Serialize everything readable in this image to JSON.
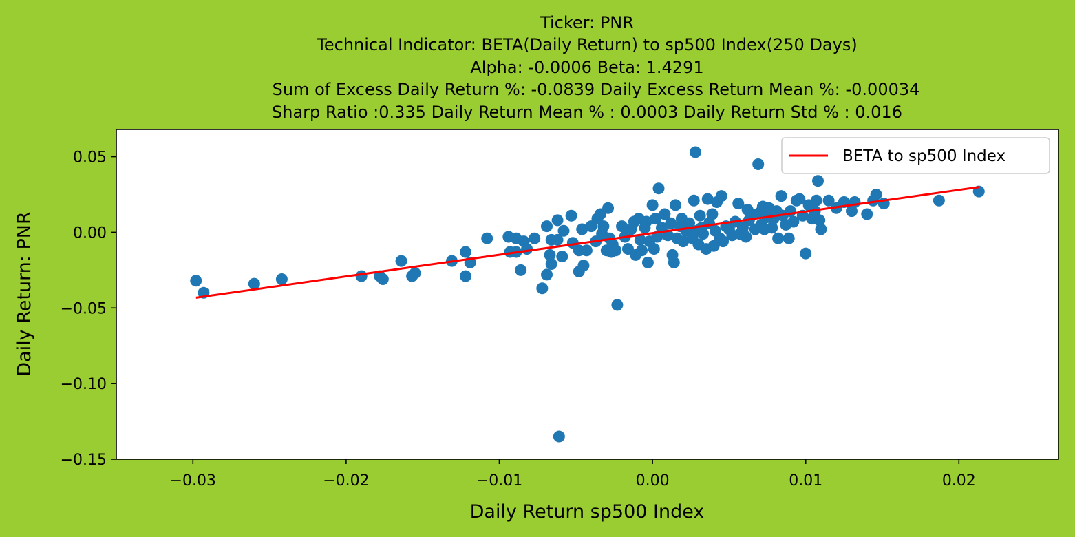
{
  "chart_data": {
    "type": "scatter",
    "title_lines": [
      "Ticker: PNR",
      "Technical Indicator: BETA(Daily Return) to sp500 Index(250 Days)",
      "Alpha: -0.0006   Beta: 1.4291",
      "Sum of Excess Daily Return %: -0.0839   Daily Excess Return Mean %: -0.00034",
      "Sharp Ratio :0.335     Daily Return Mean % : 0.0003     Daily Return Std % : 0.016"
    ],
    "xlabel": "Daily Return sp500 Index",
    "ylabel": "Daily Return: PNR",
    "xlim": [
      -0.035,
      0.0265
    ],
    "ylim": [
      -0.15,
      0.068
    ],
    "x_ticks": [
      -0.03,
      -0.02,
      -0.01,
      0.0,
      0.01,
      0.02
    ],
    "x_tick_labels": [
      "−0.03",
      "−0.02",
      "−0.01",
      "0.00",
      "0.01",
      "0.02"
    ],
    "y_ticks": [
      0.05,
      0.0,
      -0.05,
      -0.1,
      -0.15
    ],
    "y_tick_labels": [
      "0.05",
      "0.00",
      "−0.05",
      "−0.10",
      "−0.15"
    ],
    "grid": false,
    "background": "#9acd32",
    "plot_background": "#ffffff",
    "point_color": "#1f77b4",
    "line_color": "#ff0000",
    "legend": {
      "position": "top-right",
      "entries": [
        "BETA to sp500 Index"
      ]
    },
    "regression": {
      "name": "BETA to sp500 Index",
      "x": [
        -0.0298,
        0.0213
      ],
      "y": [
        -0.0432,
        0.0299
      ]
    },
    "points": [
      [
        -0.0298,
        -0.032
      ],
      [
        -0.0293,
        -0.04
      ],
      [
        -0.026,
        -0.034
      ],
      [
        -0.0242,
        -0.031
      ],
      [
        -0.019,
        -0.029
      ],
      [
        -0.0178,
        -0.029
      ],
      [
        -0.0176,
        -0.031
      ],
      [
        -0.0157,
        -0.029
      ],
      [
        -0.0155,
        -0.027
      ],
      [
        -0.0164,
        -0.019
      ],
      [
        -0.0131,
        -0.019
      ],
      [
        -0.0122,
        -0.029
      ],
      [
        -0.0122,
        -0.013
      ],
      [
        -0.0119,
        -0.02
      ],
      [
        -0.0108,
        -0.004
      ],
      [
        -0.0094,
        -0.003
      ],
      [
        -0.0093,
        -0.013
      ],
      [
        -0.0089,
        -0.004
      ],
      [
        -0.0089,
        -0.013
      ],
      [
        -0.0086,
        -0.025
      ],
      [
        -0.0084,
        -0.006
      ],
      [
        -0.0082,
        -0.011
      ],
      [
        -0.0077,
        -0.004
      ],
      [
        -0.0072,
        -0.037
      ],
      [
        -0.0069,
        0.004
      ],
      [
        -0.0069,
        -0.028
      ],
      [
        -0.0067,
        -0.015
      ],
      [
        -0.0066,
        -0.021
      ],
      [
        -0.0066,
        -0.005
      ],
      [
        -0.0062,
        0.008
      ],
      [
        -0.0062,
        -0.005
      ],
      [
        -0.0059,
        -0.016
      ],
      [
        -0.0058,
        0.001
      ],
      [
        -0.0053,
        0.011
      ],
      [
        -0.0052,
        -0.007
      ],
      [
        -0.0048,
        -0.026
      ],
      [
        -0.0048,
        -0.012
      ],
      [
        -0.0046,
        0.002
      ],
      [
        -0.0045,
        -0.022
      ],
      [
        -0.0043,
        -0.012
      ],
      [
        -0.004,
        0.004
      ],
      [
        -0.0037,
        -0.006
      ],
      [
        -0.0036,
        0.009
      ],
      [
        -0.0034,
        0.012
      ],
      [
        -0.0033,
        -0.001
      ],
      [
        -0.0032,
        0.004
      ],
      [
        -0.003,
        -0.012
      ],
      [
        -0.0029,
        0.016
      ],
      [
        -0.0028,
        -0.004
      ],
      [
        -0.0027,
        -0.013
      ],
      [
        -0.0026,
        -0.008
      ],
      [
        -0.0024,
        -0.012
      ],
      [
        -0.0023,
        -0.048
      ],
      [
        -0.002,
        0.004
      ],
      [
        -0.0018,
        -0.003
      ],
      [
        -0.0016,
        -0.011
      ],
      [
        -0.0014,
        0.002
      ],
      [
        -0.0012,
        0.007
      ],
      [
        -0.0011,
        -0.015
      ],
      [
        -0.0009,
        0.009
      ],
      [
        -0.0008,
        -0.005
      ],
      [
        -0.0007,
        -0.012
      ],
      [
        -0.0005,
        0.003
      ],
      [
        -0.0004,
        0.007
      ],
      [
        -0.0003,
        -0.02
      ],
      [
        -0.0002,
        -0.006
      ],
      [
        0.0,
        0.018
      ],
      [
        0.0001,
        -0.011
      ],
      [
        0.0002,
        0.009
      ],
      [
        0.0003,
        -0.003
      ],
      [
        0.0004,
        0.029
      ],
      [
        0.0006,
        0.003
      ],
      [
        0.0008,
        0.012
      ],
      [
        0.001,
        -0.002
      ],
      [
        0.0012,
        0.006
      ],
      [
        0.0013,
        -0.015
      ],
      [
        0.0014,
        -0.02
      ],
      [
        0.0015,
        0.018
      ],
      [
        0.0016,
        -0.004
      ],
      [
        0.0018,
        0.004
      ],
      [
        0.0019,
        0.009
      ],
      [
        0.002,
        -0.006
      ],
      [
        0.0022,
        0.001
      ],
      [
        0.0024,
        0.006
      ],
      [
        0.0026,
        -0.004
      ],
      [
        0.0027,
        0.021
      ],
      [
        0.0028,
        0.053
      ],
      [
        0.0029,
        0.001
      ],
      [
        0.003,
        -0.008
      ],
      [
        0.0031,
        0.011
      ],
      [
        0.0032,
        0.003
      ],
      [
        0.0033,
        -0.001
      ],
      [
        0.0035,
        -0.011
      ],
      [
        0.0036,
        0.022
      ],
      [
        0.0037,
        0.006
      ],
      [
        0.0039,
        0.012
      ],
      [
        0.004,
        -0.009
      ],
      [
        0.0041,
        0.001
      ],
      [
        0.0042,
        0.02
      ],
      [
        0.0044,
        -0.004
      ],
      [
        0.0045,
        0.024
      ],
      [
        0.0046,
        -0.006
      ],
      [
        0.0048,
        0.004
      ],
      [
        0.005,
        0.002
      ],
      [
        0.0052,
        -0.002
      ],
      [
        0.0054,
        0.007
      ],
      [
        0.0056,
        0.019
      ],
      [
        0.0057,
        -0.001
      ],
      [
        0.0059,
        0.003
      ],
      [
        0.0061,
        -0.003
      ],
      [
        0.0062,
        0.015
      ],
      [
        0.0063,
        0.008
      ],
      [
        0.0065,
        0.012
      ],
      [
        0.0067,
        0.002
      ],
      [
        0.0069,
        0.045
      ],
      [
        0.007,
        0.013
      ],
      [
        0.0071,
        0.005
      ],
      [
        0.0072,
        0.017
      ],
      [
        0.0073,
        0.002
      ],
      [
        0.0075,
        0.01
      ],
      [
        0.0076,
        0.016
      ],
      [
        0.0078,
        0.003
      ],
      [
        0.0079,
        0.009
      ],
      [
        0.0081,
        0.014
      ],
      [
        0.0082,
        -0.004
      ],
      [
        0.0084,
        0.024
      ],
      [
        0.0085,
        0.011
      ],
      [
        0.0087,
        0.005
      ],
      [
        0.0089,
        -0.004
      ],
      [
        0.009,
        0.014
      ],
      [
        0.0092,
        0.007
      ],
      [
        0.0094,
        0.021
      ],
      [
        0.0096,
        0.022
      ],
      [
        0.0098,
        0.011
      ],
      [
        0.01,
        -0.014
      ],
      [
        0.0102,
        0.018
      ],
      [
        0.0104,
        0.009
      ],
      [
        0.0106,
        0.014
      ],
      [
        0.0107,
        0.021
      ],
      [
        0.0108,
        0.034
      ],
      [
        0.0109,
        0.008
      ],
      [
        0.011,
        0.002
      ],
      [
        0.0115,
        0.021
      ],
      [
        0.012,
        0.016
      ],
      [
        0.0125,
        0.02
      ],
      [
        0.013,
        0.014
      ],
      [
        0.0132,
        0.02
      ],
      [
        0.014,
        0.012
      ],
      [
        0.0144,
        0.021
      ],
      [
        0.0146,
        0.025
      ],
      [
        0.0151,
        0.019
      ],
      [
        0.0187,
        0.021
      ],
      [
        0.0213,
        0.027
      ],
      [
        -0.0061,
        -0.135
      ]
    ]
  }
}
